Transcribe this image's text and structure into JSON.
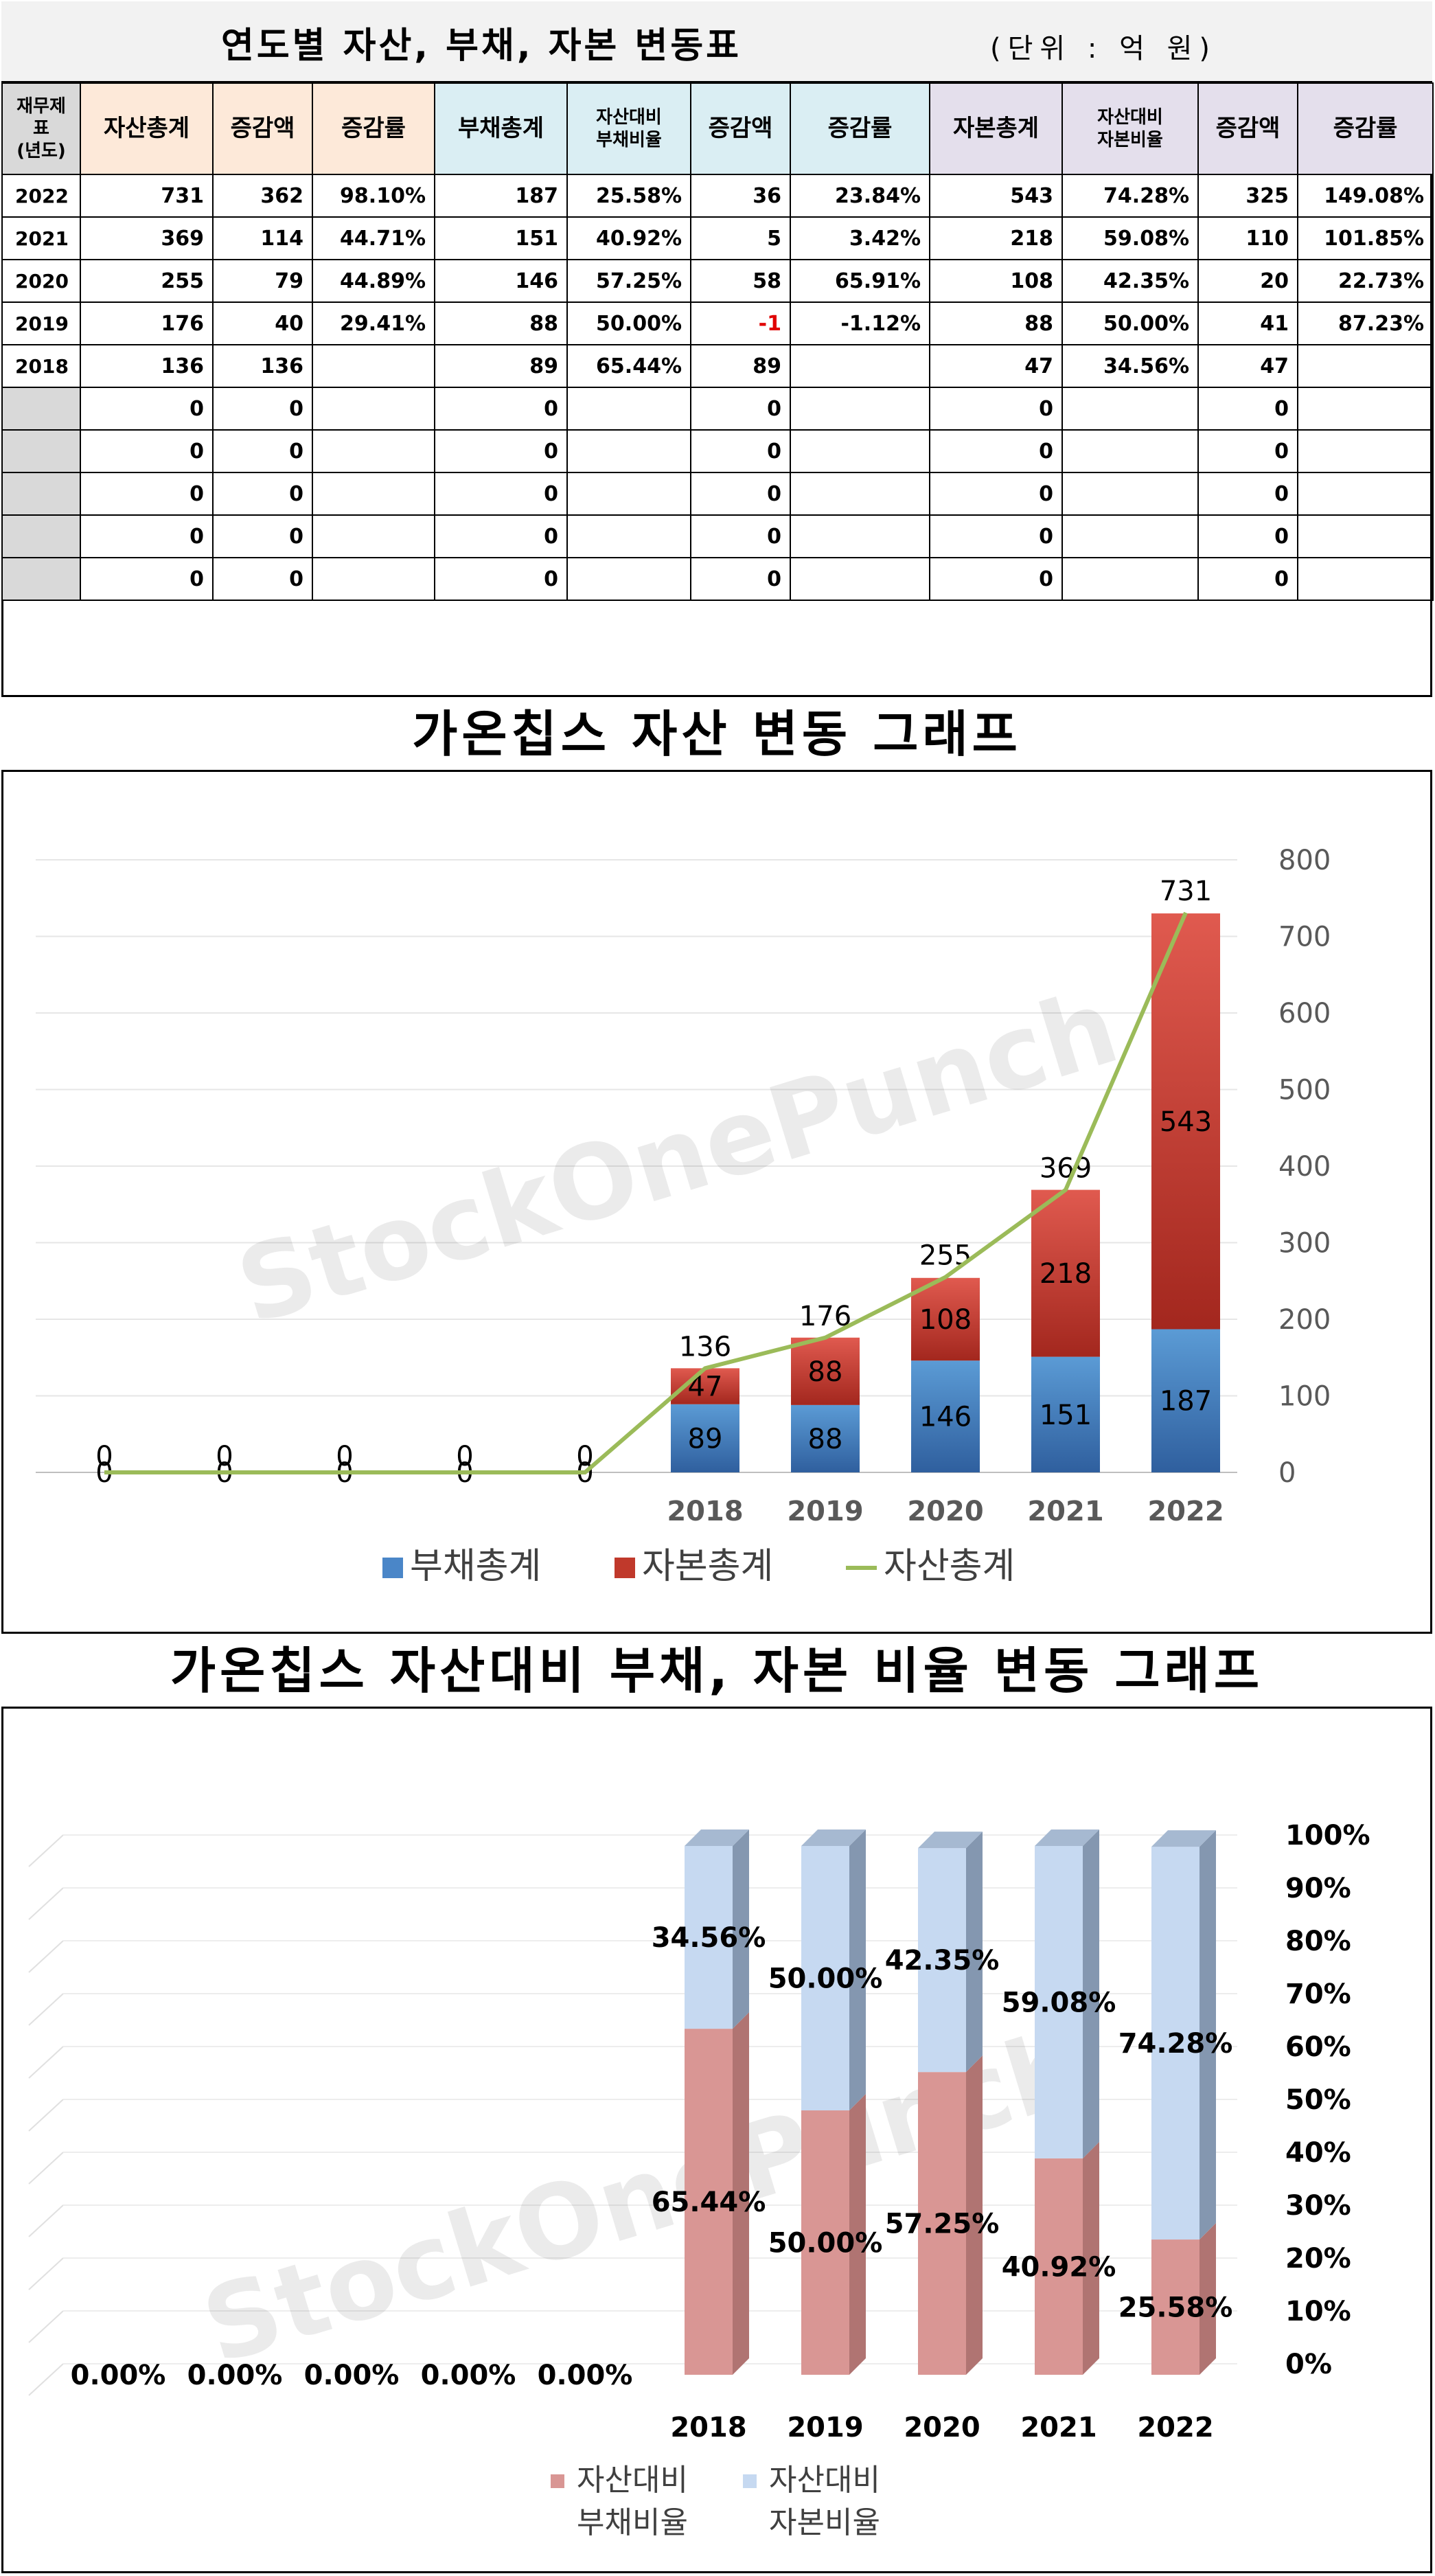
{
  "header": {
    "title": "연도별 자산, 부채, 자본 변동표",
    "unit": "(단위 : 억 원)"
  },
  "table": {
    "col_year": [
      "재무제",
      "표",
      "(년도)"
    ],
    "col_asset": "자산총계",
    "col_debt": "부채총계",
    "col_capital": "자본총계",
    "col_change": "증감액",
    "col_rate": "증감률",
    "col_debt_ratio": [
      "자산대비",
      "부채비율"
    ],
    "col_cap_ratio": [
      "자산대비",
      "자본비율"
    ],
    "rows": [
      {
        "year": "2022",
        "asset": "731",
        "asset_chg": "362",
        "asset_rate": "98.10%",
        "debt": "187",
        "debt_ratio": "25.58%",
        "debt_chg": "36",
        "debt_rate": "23.84%",
        "cap": "543",
        "cap_ratio": "74.28%",
        "cap_chg": "325",
        "cap_rate": "149.08%"
      },
      {
        "year": "2021",
        "asset": "369",
        "asset_chg": "114",
        "asset_rate": "44.71%",
        "debt": "151",
        "debt_ratio": "40.92%",
        "debt_chg": "5",
        "debt_rate": "3.42%",
        "cap": "218",
        "cap_ratio": "59.08%",
        "cap_chg": "110",
        "cap_rate": "101.85%"
      },
      {
        "year": "2020",
        "asset": "255",
        "asset_chg": "79",
        "asset_rate": "44.89%",
        "debt": "146",
        "debt_ratio": "57.25%",
        "debt_chg": "58",
        "debt_rate": "65.91%",
        "cap": "108",
        "cap_ratio": "42.35%",
        "cap_chg": "20",
        "cap_rate": "22.73%"
      },
      {
        "year": "2019",
        "asset": "176",
        "asset_chg": "40",
        "asset_rate": "29.41%",
        "debt": "88",
        "debt_ratio": "50.00%",
        "debt_chg": "-1",
        "debt_rate": "-1.12%",
        "cap": "88",
        "cap_ratio": "50.00%",
        "cap_chg": "41",
        "cap_rate": "87.23%"
      },
      {
        "year": "2018",
        "asset": "136",
        "asset_chg": "136",
        "asset_rate": "",
        "debt": "89",
        "debt_ratio": "65.44%",
        "debt_chg": "89",
        "debt_rate": "",
        "cap": "47",
        "cap_ratio": "34.56%",
        "cap_chg": "47",
        "cap_rate": ""
      },
      {
        "year": "",
        "asset": "0",
        "asset_chg": "0",
        "asset_rate": "",
        "debt": "0",
        "debt_ratio": "",
        "debt_chg": "0",
        "debt_rate": "",
        "cap": "0",
        "cap_ratio": "",
        "cap_chg": "0",
        "cap_rate": ""
      },
      {
        "year": "",
        "asset": "0",
        "asset_chg": "0",
        "asset_rate": "",
        "debt": "0",
        "debt_ratio": "",
        "debt_chg": "0",
        "debt_rate": "",
        "cap": "0",
        "cap_ratio": "",
        "cap_chg": "0",
        "cap_rate": ""
      },
      {
        "year": "",
        "asset": "0",
        "asset_chg": "0",
        "asset_rate": "",
        "debt": "0",
        "debt_ratio": "",
        "debt_chg": "0",
        "debt_rate": "",
        "cap": "0",
        "cap_ratio": "",
        "cap_chg": "0",
        "cap_rate": ""
      },
      {
        "year": "",
        "asset": "0",
        "asset_chg": "0",
        "asset_rate": "",
        "debt": "0",
        "debt_ratio": "",
        "debt_chg": "0",
        "debt_rate": "",
        "cap": "0",
        "cap_ratio": "",
        "cap_chg": "0",
        "cap_rate": ""
      },
      {
        "year": "",
        "asset": "0",
        "asset_chg": "0",
        "asset_rate": "",
        "debt": "0",
        "debt_ratio": "",
        "debt_chg": "0",
        "debt_rate": "",
        "cap": "0",
        "cap_ratio": "",
        "cap_chg": "0",
        "cap_rate": ""
      }
    ]
  },
  "watermark": "StockOnePunch",
  "colors": {
    "asset_header": "#fde9d9",
    "debt_header": "#daeef3",
    "capital_header": "#e4dfec",
    "debt_bar": "#4a86c8",
    "capital_bar": "#c0392b",
    "asset_line": "#9bbb59",
    "debt_ratio_bar": "#d99694",
    "cap_ratio_bar": "#c6d9f1"
  },
  "chart_data": [
    {
      "type": "bar",
      "stacked": true,
      "title": "가온칩스 자산 변동 그래프",
      "categories": [
        "",
        "",
        "",
        "",
        "",
        "2018",
        "2019",
        "2020",
        "2021",
        "2022"
      ],
      "series": [
        {
          "name": "부채총계",
          "kind": "bar",
          "values": [
            0,
            0,
            0,
            0,
            0,
            89,
            88,
            146,
            151,
            187
          ]
        },
        {
          "name": "자본총계",
          "kind": "bar",
          "values": [
            0,
            0,
            0,
            0,
            0,
            47,
            88,
            108,
            218,
            543
          ]
        },
        {
          "name": "자산총계",
          "kind": "line",
          "values": [
            0,
            0,
            0,
            0,
            0,
            136,
            176,
            255,
            369,
            731
          ]
        }
      ],
      "ylim": [
        0,
        800
      ],
      "yticks": [
        "0",
        "100",
        "200",
        "300",
        "400",
        "500",
        "600",
        "700",
        "800"
      ],
      "legend_position": "bottom",
      "grid": true
    },
    {
      "type": "bar",
      "stacked": true,
      "percent": true,
      "title": "가온칩스 자산대비 부채, 자본 비율 변동 그래프",
      "categories": [
        "",
        "",
        "",
        "",
        "",
        "2018",
        "2019",
        "2020",
        "2021",
        "2022"
      ],
      "series": [
        {
          "name": "자산대비 부채비율",
          "values": [
            0,
            0,
            0,
            0,
            0,
            65.44,
            50.0,
            57.25,
            40.92,
            25.58
          ],
          "labels": [
            "0.00%",
            "0.00%",
            "0.00%",
            "0.00%",
            "0.00%",
            "65.44%",
            "50.00%",
            "57.25%",
            "40.92%",
            "25.58%"
          ]
        },
        {
          "name": "자산대비 자본비율",
          "values": [
            0,
            0,
            0,
            0,
            0,
            34.56,
            50.0,
            42.35,
            59.08,
            74.28
          ],
          "labels": [
            "",
            "",
            "",
            "",
            "",
            "34.56%",
            "50.00%",
            "42.35%",
            "59.08%",
            "74.28%"
          ]
        }
      ],
      "legend_lines": [
        [
          "자산대비",
          "부채비율"
        ],
        [
          "자산대비",
          "자본비율"
        ]
      ],
      "ylim": [
        0,
        100
      ],
      "yticks": [
        "0%",
        "10%",
        "20%",
        "30%",
        "40%",
        "50%",
        "60%",
        "70%",
        "80%",
        "90%",
        "100%"
      ],
      "legend_position": "bottom",
      "grid": true
    }
  ]
}
